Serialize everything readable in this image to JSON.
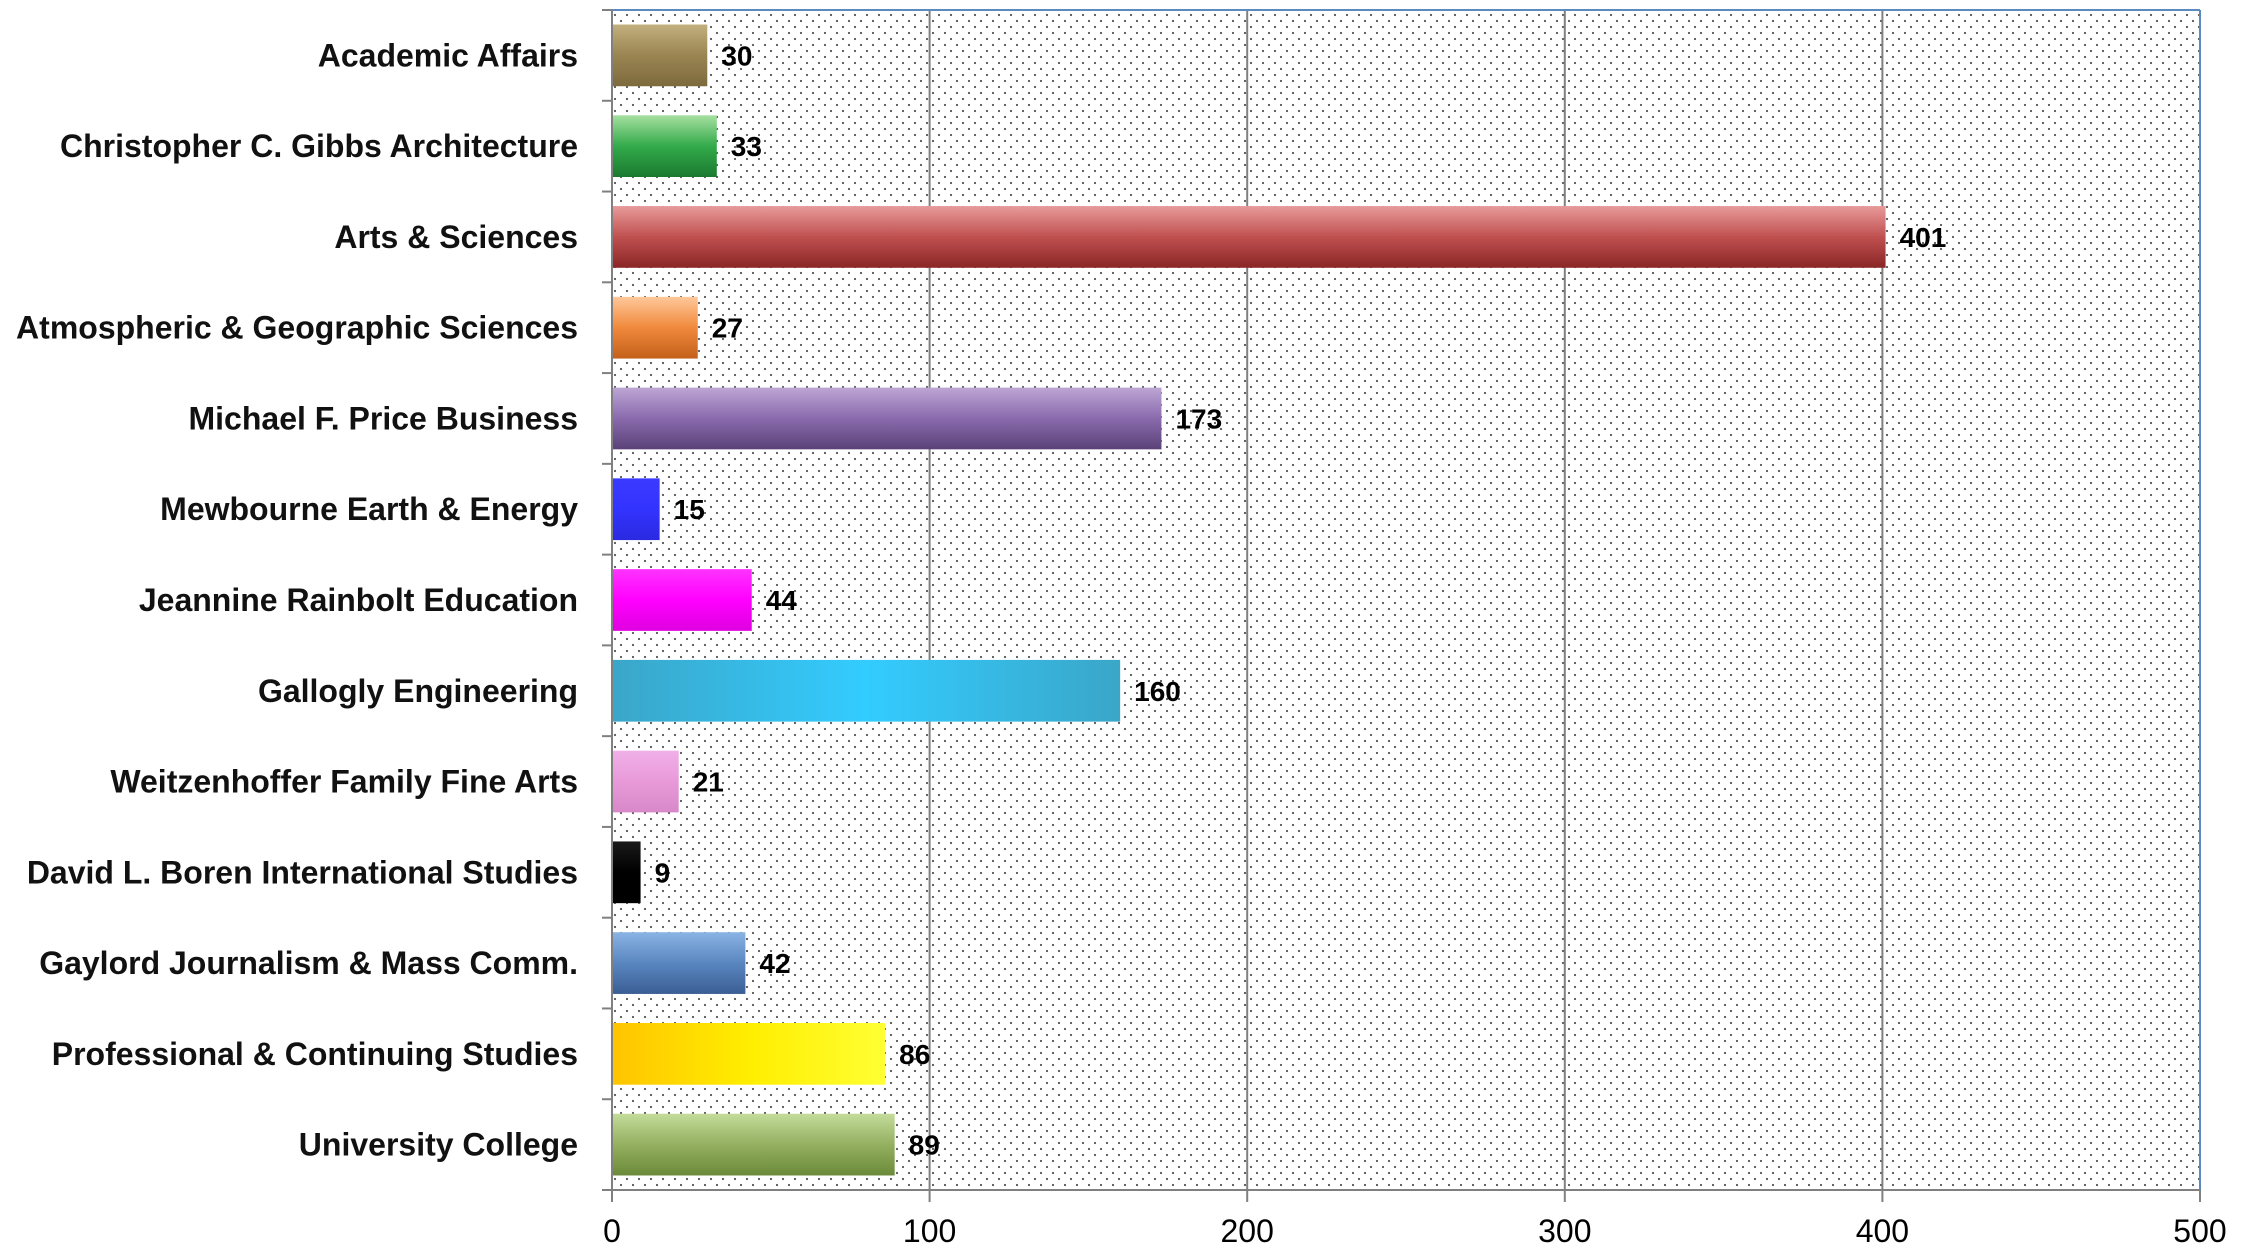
{
  "chart_data": {
    "type": "bar",
    "orientation": "horizontal",
    "title": "",
    "xlabel": "",
    "ylabel": "",
    "xlim": [
      0,
      500
    ],
    "x_ticks": [
      "0",
      "100",
      "200",
      "300",
      "400",
      "500"
    ],
    "grid": "vertical",
    "legend": "none",
    "categories": [
      "Academic Affairs",
      "Christopher C. Gibbs Architecture",
      "Arts & Sciences",
      "Atmospheric & Geographic Sciences",
      "Michael F. Price Business",
      "Mewbourne Earth & Energy",
      "Jeannine Rainbolt Education",
      "Gallogly Engineering",
      "Weitzenhoffer Family Fine Arts",
      "David L. Boren International Studies",
      "Gaylord Journalism & Mass Comm.",
      "Professional & Continuing Studies",
      "University College"
    ],
    "values": [
      30,
      33,
      401,
      27,
      173,
      15,
      44,
      160,
      21,
      9,
      42,
      86,
      89
    ],
    "data_labels": [
      "30",
      "33",
      "401",
      "27",
      "173",
      "15",
      "44",
      "160",
      "21",
      "9",
      "42",
      "86",
      "89"
    ],
    "colors": [
      [
        "#c2b07e",
        "#9a8552",
        "#7d6a3d"
      ],
      [
        "#a6e0a0",
        "#33aa4a",
        "#1a7a30"
      ],
      [
        "#e89a9a",
        "#c05050",
        "#8a2626"
      ],
      [
        "#ffc89a",
        "#f0893c",
        "#c4601a"
      ],
      [
        "#bda6d4",
        "#8a6aad",
        "#5a4278"
      ],
      [
        "#3a3aff",
        "#3333ff",
        "#2a2ae0"
      ],
      [
        "#ff33ff",
        "#ff00ff",
        "#e000e0"
      ],
      [
        "#3aa6c8",
        "#33ccff",
        "#3aa6c8"
      ],
      [
        "#f0b0e8",
        "#e89ad8",
        "#d888c8"
      ],
      [
        "#1a1a1a",
        "#000000",
        "#000000"
      ],
      [
        "#8ab4e4",
        "#5a86c0",
        "#3a5e94"
      ],
      [
        "#ffc400",
        "#ffee00",
        "#ffff33"
      ],
      [
        "#c4dc9a",
        "#94b060",
        "#6a8a3a"
      ]
    ],
    "plot_background": "dotted",
    "border_color": "#5a8ac0",
    "grid_color": "#808080"
  }
}
